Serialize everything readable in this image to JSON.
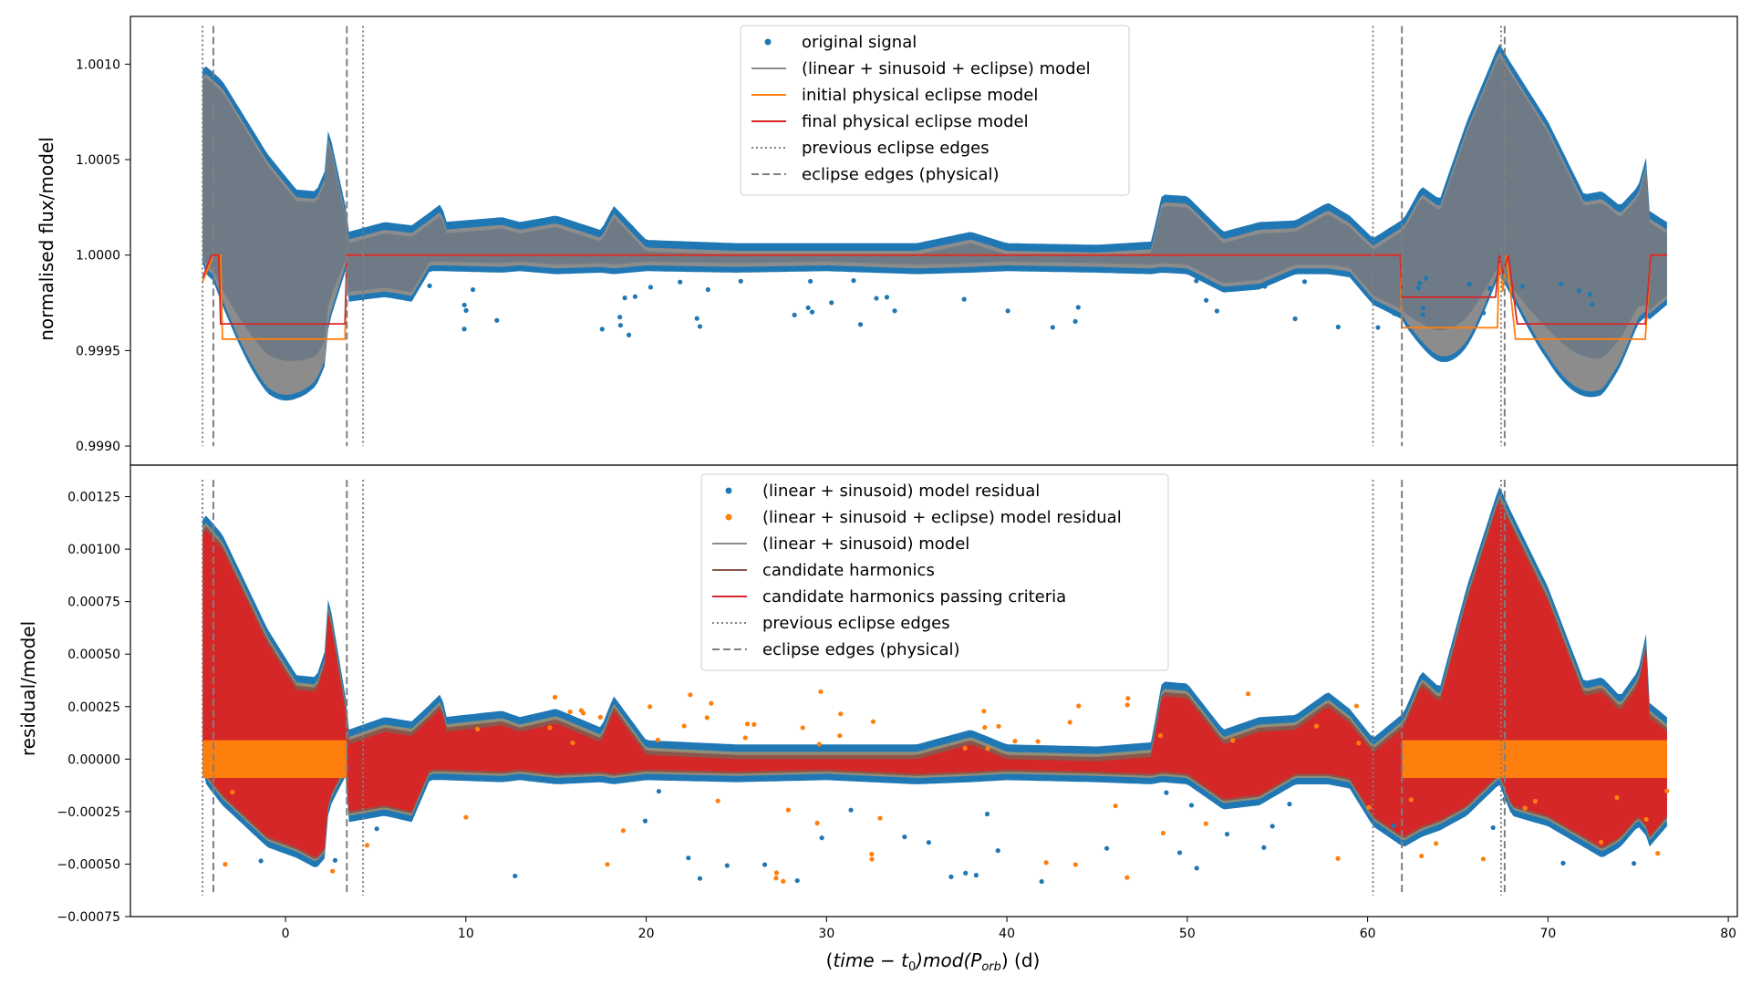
{
  "colors": {
    "blue": "#1f77b4",
    "orange": "#ff7f0e",
    "red": "#d62728",
    "gray": "#7f7f7f",
    "brown": "#8c564b",
    "model_fill": "#8c8c8c",
    "band_top": "#6e7b86"
  },
  "chart_data": [
    {
      "type": "scatter",
      "ylabel": "normalised flux/model",
      "ylim": [
        0.9989,
        1.00125
      ],
      "xlim": [
        -8.6,
        80.5
      ],
      "yticks": [
        "0.9990",
        "0.9995",
        "1.0000",
        "1.0005",
        "1.0010"
      ],
      "ytick_values": [
        0.999,
        0.9995,
        1.0,
        1.0005,
        1.001
      ],
      "legend_position": "top-center",
      "legend": [
        {
          "label": "original signal",
          "kind": "dot",
          "color": "#1f77b4"
        },
        {
          "label": "(linear + sinusoid + eclipse) model",
          "kind": "line",
          "color": "#8c8c8c"
        },
        {
          "label": "initial physical eclipse model",
          "kind": "line",
          "color": "#ff7f0e"
        },
        {
          "label": "final physical eclipse model",
          "kind": "line",
          "color": "#d62728"
        },
        {
          "label": "previous eclipse edges",
          "kind": "dotted",
          "color": "#7f7f7f"
        },
        {
          "label": "eclipse edges (physical)",
          "kind": "dashed",
          "color": "#7f7f7f"
        }
      ],
      "previous_eclipse_edges": [
        -4.6,
        4.3,
        60.3,
        67.4
      ],
      "physical_eclipse_edges": [
        -4.0,
        3.4,
        61.9,
        67.6
      ],
      "initial_eclipse_model": {
        "x": [
          -4.6,
          -4.0,
          -3.6,
          -3.5,
          3.3,
          3.4,
          61.8,
          61.9,
          67.2,
          67.3,
          67.5,
          67.7,
          68.2,
          75.4,
          75.7,
          76.6
        ],
        "y": [
          0.99986,
          1.0,
          1.0,
          0.99956,
          0.99956,
          1.0,
          1.0,
          0.99962,
          0.99962,
          1.0,
          0.99981,
          1.0,
          0.99956,
          0.99956,
          1.0,
          1.0
        ]
      },
      "final_eclipse_model": {
        "x": [
          -4.6,
          -4.1,
          -3.7,
          -3.6,
          3.3,
          3.4,
          61.8,
          61.9,
          67.1,
          67.3,
          67.5,
          67.8,
          68.3,
          75.4,
          75.7,
          76.6
        ],
        "y": [
          0.99988,
          1.0,
          1.0,
          0.99964,
          0.99964,
          1.0,
          1.0,
          0.99978,
          0.99978,
          1.0,
          0.9999,
          1.0,
          0.99964,
          0.99964,
          1.0,
          1.0
        ]
      }
    },
    {
      "type": "scatter",
      "ylabel": "residual/model",
      "ylim": [
        -0.00075,
        0.0014
      ],
      "xlim": [
        -8.6,
        80.5
      ],
      "yticks": [
        "−0.00075",
        "−0.00050",
        "−0.00025",
        "0.00000",
        "0.00025",
        "0.00050",
        "0.00075",
        "0.00100",
        "0.00125"
      ],
      "ytick_values": [
        -0.00075,
        -0.0005,
        -0.00025,
        0.0,
        0.00025,
        0.0005,
        0.00075,
        0.001,
        0.00125
      ],
      "xlabel": "(time − t₀) mod(P_orb) (d)",
      "xlabel_parts": {
        "pre": "(",
        "expr": "time − t",
        "sub0": "0",
        "mid": ")mod(P",
        "sub1": "orb",
        "post": ") (d)"
      },
      "xticks": [
        "0",
        "10",
        "20",
        "30",
        "40",
        "50",
        "60",
        "70",
        "80"
      ],
      "xtick_values": [
        0,
        10,
        20,
        30,
        40,
        50,
        60,
        70,
        80
      ],
      "legend_position": "top-center",
      "legend": [
        {
          "label": "(linear + sinusoid) model residual",
          "kind": "dot",
          "color": "#1f77b4"
        },
        {
          "label": "(linear + sinusoid + eclipse) model residual",
          "kind": "dot",
          "color": "#ff7f0e"
        },
        {
          "label": "(linear + sinusoid) model",
          "kind": "line",
          "color": "#8c8c8c"
        },
        {
          "label": "candidate harmonics",
          "kind": "line",
          "color": "#8c564b"
        },
        {
          "label": "candidate harmonics passing criteria",
          "kind": "line",
          "color": "#d62728"
        },
        {
          "label": "previous eclipse edges",
          "kind": "dotted",
          "color": "#7f7f7f"
        },
        {
          "label": "eclipse edges (physical)",
          "kind": "dashed",
          "color": "#7f7f7f"
        }
      ],
      "previous_eclipse_edges": [
        -4.6,
        4.3,
        60.3,
        67.4
      ],
      "physical_eclipse_edges": [
        -4.0,
        3.4,
        61.9,
        67.6
      ]
    }
  ],
  "envelope_upper_x": [
    -4.6,
    -4.4,
    -3.5,
    -1.0,
    0.6,
    1.7,
    2.2,
    2.4,
    2.5,
    3.4,
    3.5,
    5.5,
    7.0,
    8.0,
    8.7,
    8.8,
    12.0,
    13.0,
    15.0,
    17.5,
    18.2,
    20.0,
    25.0,
    30.0,
    35.0,
    38.0,
    40.0,
    45.0,
    48.0,
    48.6,
    50.0,
    52.0,
    54.0,
    56.0,
    57.8,
    59.0,
    60.3,
    62.0,
    63.0,
    64.0,
    65.5,
    67.3,
    68.0,
    70.0,
    72.0,
    73.0,
    74.0,
    75.0,
    75.5,
    75.6,
    76.6
  ],
  "envelope_upper_y": [
    0.00112,
    0.00114,
    0.00105,
    0.0006,
    0.00038,
    0.00037,
    0.0005,
    0.0008,
    0.0007,
    0.00024,
    0.00012,
    0.00018,
    0.00016,
    0.00024,
    0.0003,
    0.00018,
    0.00021,
    0.00018,
    0.00022,
    0.00013,
    0.00028,
    7e-05,
    5e-05,
    5e-05,
    5e-05,
    0.00012,
    5e-05,
    4e-05,
    6e-05,
    0.00035,
    0.00034,
    0.00012,
    0.00018,
    0.00019,
    0.0003,
    0.00022,
    8e-05,
    0.0002,
    0.0004,
    0.00032,
    0.0008,
    0.00128,
    0.00115,
    0.0008,
    0.00035,
    0.00037,
    0.00028,
    0.0004,
    0.0006,
    0.00025,
    0.00018
  ],
  "envelope_lower_y": [
    -2e-05,
    -0.0001,
    -0.0002,
    -0.0004,
    -0.00045,
    -0.0005,
    -0.00045,
    -0.0002,
    -0.0002,
    -5e-05,
    -0.00028,
    -0.00025,
    -0.00028,
    -8e-05,
    -8e-05,
    -8e-05,
    -9e-05,
    -8e-05,
    -0.0001,
    -9e-05,
    -0.0001,
    -8e-05,
    -9e-05,
    -8e-05,
    -0.0001,
    -9e-05,
    -8e-05,
    -9e-05,
    -0.0001,
    -9e-05,
    -0.0001,
    -0.00022,
    -0.0002,
    -0.0001,
    -0.0001,
    -0.00012,
    -0.0003,
    -0.0004,
    -0.00035,
    -0.00032,
    -0.00025,
    -0.0001,
    -0.00025,
    -0.0003,
    -0.0004,
    -0.00045,
    -0.0004,
    -0.0003,
    -0.00035,
    -0.0004,
    -0.0003
  ]
}
